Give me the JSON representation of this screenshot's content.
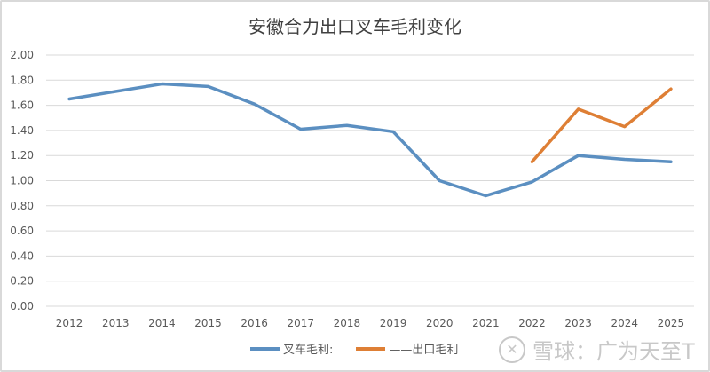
{
  "chart_data": {
    "type": "line",
    "title": "安徽合力出口叉车毛利变化",
    "xlabel": "",
    "ylabel": "",
    "categories": [
      "2012",
      "2013",
      "2014",
      "2015",
      "2016",
      "2017",
      "2018",
      "2019",
      "2020",
      "2021",
      "2022",
      "2023",
      "2024",
      "2025"
    ],
    "ylim": [
      0,
      2.0
    ],
    "yticks": [
      "0.00",
      "0.20",
      "0.40",
      "0.60",
      "0.80",
      "1.00",
      "1.20",
      "1.40",
      "1.60",
      "1.80",
      "2.00"
    ],
    "grid": true,
    "legend_position": "bottom",
    "series": [
      {
        "name": "叉车毛利:",
        "color": "#5b8fc1",
        "values": [
          1.65,
          1.71,
          1.77,
          1.75,
          1.61,
          1.41,
          1.44,
          1.39,
          1.0,
          0.88,
          0.99,
          1.2,
          1.17,
          1.15
        ]
      },
      {
        "name": "——出口毛利",
        "color": "#de7f35",
        "values": [
          null,
          null,
          null,
          null,
          null,
          null,
          null,
          null,
          null,
          null,
          1.15,
          1.57,
          1.43,
          1.73
        ]
      }
    ]
  },
  "watermark": "雪球：广为天至T"
}
